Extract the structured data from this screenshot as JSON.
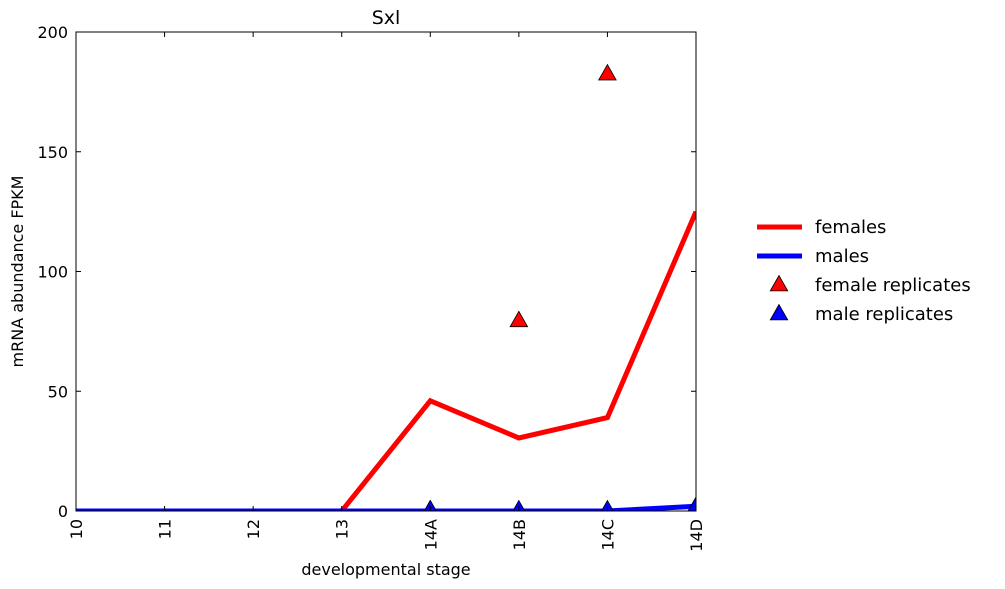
{
  "chart_data": {
    "type": "line",
    "title": "Sxl",
    "xlabel": "developmental stage",
    "ylabel": "mRNA abundance FPKM",
    "categories": [
      "10",
      "11",
      "12",
      "13",
      "14A",
      "14B",
      "14C",
      "14D"
    ],
    "ylim": [
      0,
      200
    ],
    "yticks": [
      0,
      50,
      100,
      150,
      200
    ],
    "grid": false,
    "legend_position": "right",
    "series": [
      {
        "name": "females",
        "kind": "line",
        "color": "#ff0000",
        "values": [
          0,
          0,
          0,
          0,
          46,
          30.5,
          39,
          125
        ]
      },
      {
        "name": "males",
        "kind": "line",
        "color": "#0000ff",
        "values": [
          0,
          0,
          0,
          0,
          0,
          0,
          0,
          2
        ]
      },
      {
        "name": "female replicates",
        "kind": "marker",
        "marker": "triangle",
        "color": "#ff0000",
        "points": [
          {
            "category": "14A",
            "value": 0
          },
          {
            "category": "14B",
            "value": 79
          },
          {
            "category": "14C",
            "value": 182
          },
          {
            "category": "14D",
            "value": 1
          }
        ]
      },
      {
        "name": "male replicates",
        "kind": "marker",
        "marker": "triangle",
        "color": "#0000ff",
        "points": [
          {
            "category": "14A",
            "value": 0
          },
          {
            "category": "14B",
            "value": 0
          },
          {
            "category": "14C",
            "value": 0
          },
          {
            "category": "14D",
            "value": 1.5
          }
        ]
      }
    ]
  }
}
